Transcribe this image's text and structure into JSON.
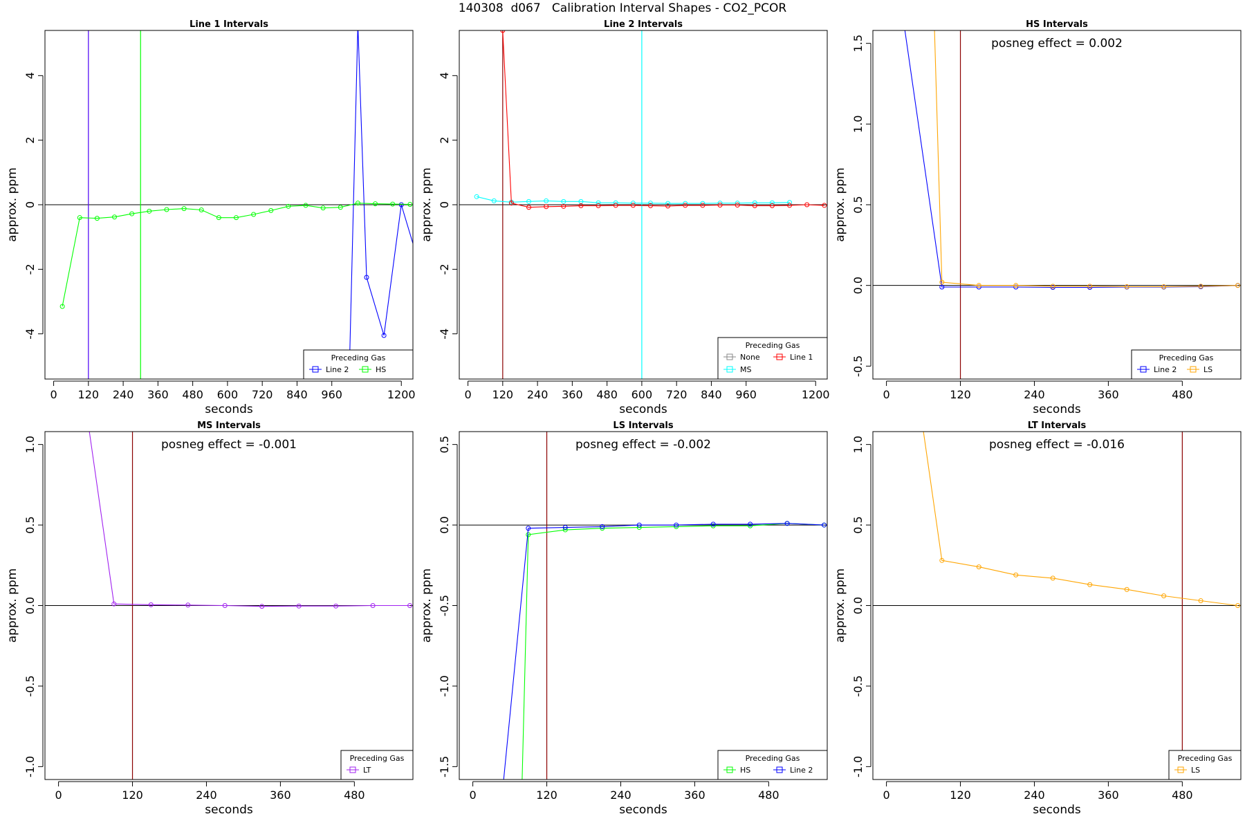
{
  "page_title": "140308  d067   Calibration Interval Shapes - CO2_PCOR",
  "colors": {
    "line1": "#ff0000",
    "line2": "#0000ff",
    "hs": "#00ff00",
    "ms": "#00ffff",
    "ls": "#ffa500",
    "lt": "#a020f0",
    "none": "#888888",
    "vline_dark": "#8b0000",
    "zero": "#000000"
  },
  "chart_data": [
    {
      "type": "line",
      "title": "Line 1 Intervals",
      "xlabel": "seconds",
      "ylabel": "approx. ppm",
      "xlim": [
        -30,
        1240
      ],
      "ylim": [
        -5.4,
        5.4
      ],
      "xticks": [
        0,
        120,
        240,
        360,
        480,
        600,
        720,
        840,
        960,
        1200
      ],
      "yticks": [
        -4,
        -2,
        0,
        2,
        4
      ],
      "vlines": [
        {
          "x": 120,
          "color": "#0000ff"
        },
        {
          "x": 120,
          "color": "#a020f0"
        },
        {
          "x": 300,
          "color": "#00ff00"
        }
      ],
      "legend": {
        "title": "Preceding Gas",
        "items": [
          {
            "label": "Line 2",
            "color": "#0000ff"
          },
          {
            "label": "HS",
            "color": "#00ff00"
          }
        ]
      },
      "series": [
        {
          "name": "Line 2",
          "color": "#0000ff",
          "x": [
            1020,
            1050,
            1080,
            1140,
            1200,
            1240
          ],
          "y": [
            -5.4,
            5.6,
            -2.25,
            -4.05,
            0.0,
            -1.2
          ],
          "markers": [
            1080,
            1140,
            1200
          ]
        },
        {
          "name": "HS",
          "color": "#00ff00",
          "x": [
            30,
            90,
            150,
            210,
            270,
            330,
            390,
            450,
            510,
            570,
            630,
            690,
            750,
            810,
            870,
            930,
            990,
            1050,
            1110,
            1170,
            1230
          ],
          "y": [
            -3.15,
            -0.4,
            -0.42,
            -0.38,
            -0.28,
            -0.2,
            -0.15,
            -0.12,
            -0.16,
            -0.4,
            -0.4,
            -0.3,
            -0.18,
            -0.05,
            -0.02,
            -0.1,
            -0.08,
            0.05,
            0.03,
            0.02,
            0.01
          ]
        }
      ]
    },
    {
      "type": "line",
      "title": "Line 2 Intervals",
      "xlabel": "seconds",
      "ylabel": "approx. ppm",
      "xlim": [
        -30,
        1240
      ],
      "ylim": [
        -5.4,
        5.4
      ],
      "xticks": [
        0,
        120,
        240,
        360,
        480,
        600,
        720,
        840,
        960,
        1200
      ],
      "yticks": [
        -4,
        -2,
        0,
        2,
        4
      ],
      "vlines": [
        {
          "x": 120,
          "color": "#8b0000"
        },
        {
          "x": 600,
          "color": "#00ffff"
        }
      ],
      "legend": {
        "title": "Preceding Gas",
        "items": [
          {
            "label": "None",
            "color": "#888888"
          },
          {
            "label": "Line 1",
            "color": "#ff0000"
          },
          {
            "label": "MS",
            "color": "#00ffff"
          }
        ]
      },
      "series": [
        {
          "name": "MS",
          "color": "#00ffff",
          "x": [
            30,
            90,
            150,
            210,
            270,
            330,
            390,
            450,
            510,
            570,
            630,
            690,
            750,
            810,
            870,
            930,
            990,
            1050,
            1110
          ],
          "y": [
            0.25,
            0.12,
            0.08,
            0.1,
            0.12,
            0.1,
            0.1,
            0.06,
            0.06,
            0.05,
            0.05,
            0.04,
            0.04,
            0.04,
            0.05,
            0.05,
            0.06,
            0.06,
            0.07
          ]
        },
        {
          "name": "Line 1",
          "color": "#ff0000",
          "x": [
            120,
            150,
            210,
            270,
            330,
            390,
            450,
            510,
            570,
            630,
            690,
            750,
            810,
            870,
            930,
            990,
            1050,
            1110,
            1170,
            1230
          ],
          "y": [
            5.4,
            0.05,
            -0.08,
            -0.06,
            -0.05,
            -0.03,
            -0.03,
            -0.02,
            -0.02,
            -0.03,
            -0.04,
            -0.02,
            -0.02,
            -0.01,
            -0.01,
            -0.03,
            -0.03,
            -0.02,
            0.0,
            -0.02
          ]
        }
      ]
    },
    {
      "type": "line",
      "title": "HS Intervals",
      "xlabel": "seconds",
      "ylabel": "approx. ppm",
      "xlim": [
        -22,
        575
      ],
      "ylim": [
        -0.58,
        1.58
      ],
      "xticks": [
        0,
        120,
        240,
        360,
        480
      ],
      "yticks": [
        -0.5,
        0.0,
        0.5,
        1.0,
        1.5
      ],
      "vlines": [
        {
          "x": 120,
          "color": "#8b0000"
        }
      ],
      "legend": {
        "title": "Preceding Gas",
        "items": [
          {
            "label": "Line 2",
            "color": "#0000ff"
          },
          {
            "label": "LS",
            "color": "#ffa500"
          }
        ]
      },
      "annotation": "posneg effect = 0.002",
      "series": [
        {
          "name": "Line 2",
          "color": "#0000ff",
          "x": [
            30,
            90,
            150,
            210,
            270,
            330,
            390,
            450,
            510,
            570
          ],
          "y": [
            1.58,
            -0.01,
            -0.01,
            -0.01,
            -0.012,
            -0.012,
            -0.01,
            -0.01,
            -0.008,
            0.0
          ],
          "markers": [
            90,
            150,
            210,
            270,
            330,
            390,
            450,
            510,
            570
          ]
        },
        {
          "name": "LS",
          "color": "#ffa500",
          "x": [
            78,
            90,
            150,
            210,
            270,
            330,
            390,
            450,
            510,
            570
          ],
          "y": [
            1.58,
            0.02,
            0.0,
            0.0,
            -0.005,
            -0.005,
            -0.008,
            -0.008,
            -0.005,
            0.0
          ],
          "markers": [
            90,
            150,
            210,
            270,
            330,
            390,
            450,
            510,
            570
          ]
        }
      ]
    },
    {
      "type": "line",
      "title": "MS Intervals",
      "xlabel": "seconds",
      "ylabel": "approx. ppm",
      "xlim": [
        -22,
        575
      ],
      "ylim": [
        -1.08,
        1.08
      ],
      "xticks": [
        0,
        120,
        240,
        360,
        480
      ],
      "yticks": [
        -1.0,
        -0.5,
        0.0,
        0.5,
        1.0
      ],
      "vlines": [
        {
          "x": 120,
          "color": "#8b0000"
        }
      ],
      "legend": {
        "title": "Preceding Gas",
        "items": [
          {
            "label": "LT",
            "color": "#a020f0"
          }
        ]
      },
      "annotation": "posneg effect = -0.001",
      "series": [
        {
          "name": "LT",
          "color": "#a020f0",
          "x": [
            50,
            90,
            150,
            210,
            270,
            330,
            390,
            450,
            510,
            570
          ],
          "y": [
            1.08,
            0.01,
            0.005,
            0.003,
            0.0,
            -0.005,
            -0.003,
            -0.003,
            0.0,
            0.0
          ],
          "markers": [
            90,
            150,
            210,
            270,
            330,
            390,
            450,
            510,
            570
          ]
        }
      ]
    },
    {
      "type": "line",
      "title": "LS Intervals",
      "xlabel": "seconds",
      "ylabel": "approx. ppm",
      "xlim": [
        -22,
        575
      ],
      "ylim": [
        -1.58,
        0.58
      ],
      "xticks": [
        0,
        120,
        240,
        360,
        480
      ],
      "yticks": [
        -1.5,
        -1.0,
        -0.5,
        0.0,
        0.5
      ],
      "vlines": [
        {
          "x": 120,
          "color": "#8b0000"
        }
      ],
      "legend": {
        "title": "Preceding Gas",
        "items": [
          {
            "label": "HS",
            "color": "#00ff00"
          },
          {
            "label": "Line 2",
            "color": "#0000ff"
          }
        ]
      },
      "annotation": "posneg effect = -0.002",
      "series": [
        {
          "name": "HS",
          "color": "#00ff00",
          "x": [
            80,
            90,
            150,
            210,
            270,
            330,
            390,
            450,
            510,
            570
          ],
          "y": [
            -1.58,
            -0.06,
            -0.03,
            -0.02,
            -0.015,
            -0.01,
            -0.005,
            -0.005,
            0.01,
            0.0
          ],
          "markers": [
            90,
            150,
            210,
            270,
            330,
            390,
            450,
            510,
            570
          ]
        },
        {
          "name": "Line 2",
          "color": "#0000ff",
          "x": [
            50,
            90,
            150,
            210,
            270,
            330,
            390,
            450,
            510,
            570
          ],
          "y": [
            -1.58,
            -0.02,
            -0.015,
            -0.01,
            0.0,
            0.0,
            0.005,
            0.005,
            0.01,
            0.0
          ],
          "markers": [
            90,
            150,
            210,
            270,
            330,
            390,
            450,
            510,
            570
          ]
        }
      ]
    },
    {
      "type": "line",
      "title": "LT Intervals",
      "xlabel": "seconds",
      "ylabel": "approx. ppm",
      "xlim": [
        -22,
        575
      ],
      "ylim": [
        -1.08,
        1.08
      ],
      "xticks": [
        0,
        120,
        240,
        360,
        480
      ],
      "yticks": [
        -1.0,
        -0.5,
        0.0,
        0.5,
        1.0
      ],
      "vlines": [
        {
          "x": 480,
          "color": "#8b0000"
        }
      ],
      "legend": {
        "title": "Preceding Gas",
        "items": [
          {
            "label": "LS",
            "color": "#ffa500"
          }
        ]
      },
      "annotation": "posneg effect = -0.016",
      "series": [
        {
          "name": "LS",
          "color": "#ffa500",
          "x": [
            60,
            90,
            150,
            210,
            270,
            330,
            390,
            450,
            510,
            570
          ],
          "y": [
            1.08,
            0.28,
            0.24,
            0.19,
            0.17,
            0.13,
            0.1,
            0.06,
            0.03,
            0.0
          ],
          "markers": [
            90,
            150,
            210,
            270,
            330,
            390,
            450,
            510,
            570
          ]
        }
      ]
    }
  ]
}
